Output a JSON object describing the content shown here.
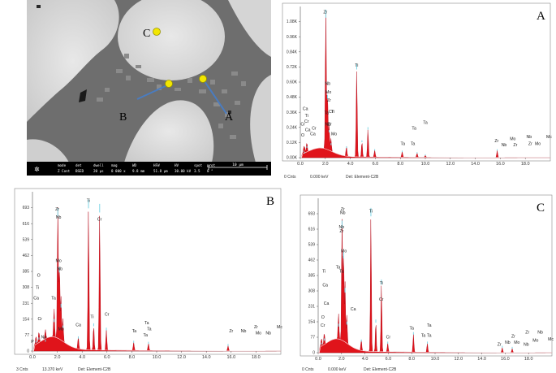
{
  "sem": {
    "points": [
      {
        "label": "C"
      },
      {
        "label": "B"
      },
      {
        "label": "A"
      }
    ],
    "databar": {
      "headers": [
        "mode",
        "det",
        "dwell",
        "mag",
        "WD",
        "HFW",
        "HV",
        "spot",
        "prot"
      ],
      "values": [
        "Z Cont",
        "BSED",
        "20 µs",
        "8 000 x",
        "9.8 mm",
        "51.8 µm",
        "30.00 kV",
        "3.5",
        "0 °"
      ],
      "scalebar": "10 µm"
    }
  },
  "chart_data": [
    {
      "panel": "A",
      "type": "spectrum",
      "xlim": [
        0,
        20
      ],
      "ylim": [
        0,
        1080
      ],
      "ytick_labels": [
        "0.00K",
        "0.12K",
        "0.24K",
        "0.36K",
        "0.48K",
        "0.60K",
        "0.72K",
        "0.84K",
        "0.96K",
        "1.08K"
      ],
      "xtick_labels": [
        "0.0",
        "2.0",
        "4.0",
        "6.0",
        "8.0",
        "10.0",
        "12.0",
        "14.0",
        "16.0",
        "18.0"
      ],
      "peaks": [
        {
          "x": 0.28,
          "y": 40
        },
        {
          "x": 0.52,
          "y": 70
        },
        {
          "x": 0.35,
          "y": 30
        },
        {
          "x": 2.04,
          "y": 1000
        },
        {
          "x": 2.17,
          "y": 420
        },
        {
          "x": 2.3,
          "y": 180
        },
        {
          "x": 2.45,
          "y": 90
        },
        {
          "x": 3.69,
          "y": 70
        },
        {
          "x": 4.51,
          "y": 630
        },
        {
          "x": 4.93,
          "y": 110
        },
        {
          "x": 5.41,
          "y": 200
        },
        {
          "x": 5.95,
          "y": 50
        },
        {
          "x": 8.15,
          "y": 40
        },
        {
          "x": 9.34,
          "y": 30
        },
        {
          "x": 10.0,
          "y": 15
        },
        {
          "x": 15.75,
          "y": 50
        }
      ],
      "element_labels": [
        "Zr",
        "Nb",
        "Mo",
        "Zr",
        "Ti",
        "Ca",
        "Ti",
        "Cr",
        "Ta",
        "Cr",
        "Ti",
        "Nb",
        "Zr",
        "Mo",
        "Ca",
        "Cr",
        "O",
        "Ca",
        "Cr",
        "Ta",
        "Ta",
        "Ta",
        "Ta",
        "Zr",
        "Nb",
        "Zr",
        "Mo",
        "Nb",
        "Zr",
        "Mo",
        "Mc"
      ],
      "footer": {
        "cnts": "0 Cnts",
        "kev": "0.000 keV",
        "det": "Det: Element-C2B"
      }
    },
    {
      "panel": "B",
      "type": "spectrum",
      "xlim": [
        0,
        20
      ],
      "ylim": [
        0,
        770
      ],
      "ytick_labels": [
        "0",
        "77",
        "154",
        "231",
        "308",
        "385",
        "462",
        "539",
        "616",
        "693"
      ],
      "xtick_labels": [
        "0.0",
        "2.0",
        "4.0",
        "6.0",
        "8.0",
        "10.0",
        "12.0",
        "14.0",
        "16.0",
        "18.0"
      ],
      "peaks": [
        {
          "x": 0.28,
          "y": 40
        },
        {
          "x": 0.52,
          "y": 55
        },
        {
          "x": 1.04,
          "y": 45
        },
        {
          "x": 1.74,
          "y": 140
        },
        {
          "x": 2.04,
          "y": 650
        },
        {
          "x": 2.17,
          "y": 380
        },
        {
          "x": 2.3,
          "y": 210
        },
        {
          "x": 2.45,
          "y": 110
        },
        {
          "x": 3.69,
          "y": 60
        },
        {
          "x": 4.51,
          "y": 690
        },
        {
          "x": 4.93,
          "y": 120
        },
        {
          "x": 5.41,
          "y": 670
        },
        {
          "x": 5.95,
          "y": 100
        },
        {
          "x": 8.15,
          "y": 40
        },
        {
          "x": 9.34,
          "y": 35
        },
        {
          "x": 15.75,
          "y": 25
        }
      ],
      "element_labels": [
        "Zr",
        "Nb",
        "Ti",
        "Cr",
        "Mo",
        "Nb",
        "O",
        "Ti",
        "Ca",
        "Ta",
        "Ca",
        "Ti",
        "Cr",
        "Ta",
        "Ta",
        "Ta",
        "Ta",
        "Zr",
        "Nb",
        "Zr",
        "Mo",
        "Nb",
        "Mc",
        "Cr",
        "Mo",
        "Na",
        "P"
      ],
      "footer": {
        "cnts": "3 Cnts",
        "kev": "13.370 keV",
        "det": "Det: Element-C2B"
      }
    },
    {
      "panel": "C",
      "type": "spectrum",
      "xlim": [
        0,
        20
      ],
      "ylim": [
        0,
        770
      ],
      "ytick_labels": [
        "0",
        "77",
        "154",
        "231",
        "308",
        "385",
        "462",
        "539",
        "616",
        "693"
      ],
      "xtick_labels": [
        "0.0",
        "2.0",
        "4.0",
        "6.0",
        "8.0",
        "10.0",
        "12.0",
        "14.0",
        "16.0",
        "18.0"
      ],
      "peaks": [
        {
          "x": 0.28,
          "y": 40
        },
        {
          "x": 0.52,
          "y": 60
        },
        {
          "x": 1.74,
          "y": 130
        },
        {
          "x": 2.04,
          "y": 620
        },
        {
          "x": 2.17,
          "y": 470
        },
        {
          "x": 2.3,
          "y": 300
        },
        {
          "x": 2.45,
          "y": 140
        },
        {
          "x": 3.69,
          "y": 55
        },
        {
          "x": 4.51,
          "y": 680
        },
        {
          "x": 4.93,
          "y": 150
        },
        {
          "x": 5.41,
          "y": 340
        },
        {
          "x": 5.95,
          "y": 45
        },
        {
          "x": 8.15,
          "y": 90
        },
        {
          "x": 9.34,
          "y": 45
        },
        {
          "x": 15.75,
          "y": 25
        },
        {
          "x": 16.6,
          "y": 20
        }
      ],
      "element_labels": [
        "Zr",
        "Nb",
        "Ti",
        "Nb",
        "Zr",
        "Mo",
        "Ti",
        "Ta",
        "Ca",
        "Ti",
        "Ta",
        "Cr",
        "Ca",
        "Ca",
        "O",
        "Cr",
        "Cr",
        "Ta",
        "Ta",
        "Ta",
        "Ta",
        "Zr",
        "Nb",
        "Zr",
        "Mo",
        "Nb",
        "Zr",
        "Mo",
        "Nb",
        "Mc"
      ],
      "footer": {
        "cnts": "0 Cnts",
        "kev": "0.000 keV",
        "det": "Det: Element-C2B"
      }
    }
  ]
}
